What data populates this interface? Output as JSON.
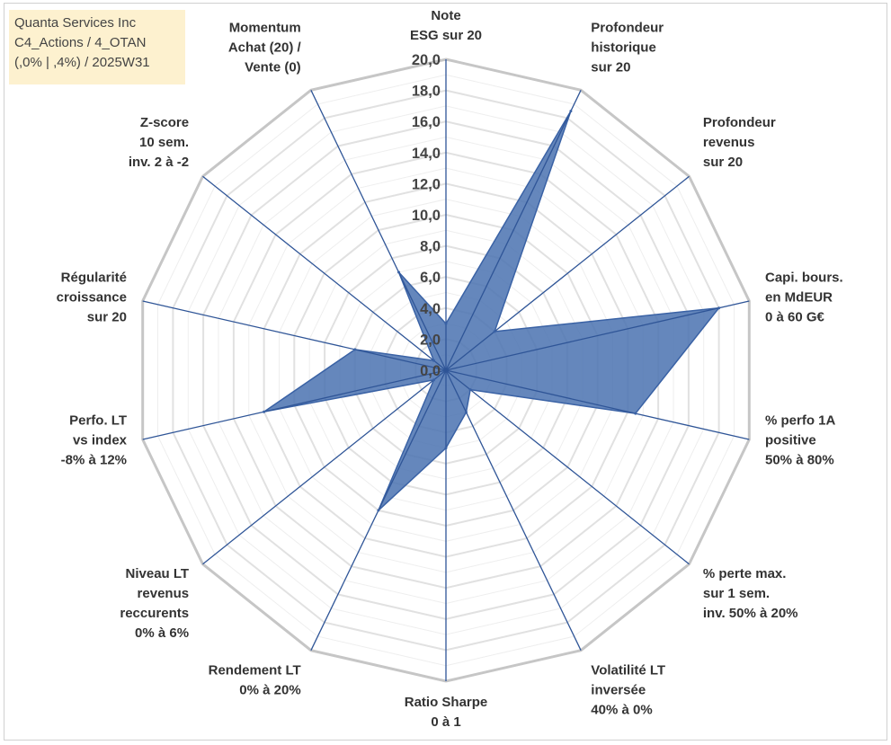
{
  "title_lines": [
    "Quanta Services Inc",
    "C4_Actions / 4_OTAN",
    "(,0% | ,4%) / 2025W31"
  ],
  "chart_data": {
    "type": "radar",
    "title": "Quanta Services Inc",
    "subtitle": "C4_Actions / 4_OTAN (,0% | ,4%) / 2025W31",
    "rmax": 20,
    "ticks": [
      "0,0",
      "2,0",
      "4,0",
      "6,0",
      "8,0",
      "10,0",
      "12,0",
      "14,0",
      "16,0",
      "18,0",
      "20,0"
    ],
    "grid": true,
    "axes": [
      {
        "lines": [
          "Note",
          "ESG sur 20"
        ],
        "value": 3.0
      },
      {
        "lines": [
          "Profondeur",
          "historique",
          "sur 20"
        ],
        "value": 18.5
      },
      {
        "lines": [
          "Profondeur",
          "revenus",
          "sur 20"
        ],
        "value": 4.0
      },
      {
        "lines": [
          "Capi. bours.",
          "en MdEUR",
          "0 à 60 G€"
        ],
        "value": 18.0
      },
      {
        "lines": [
          "% perfo 1A",
          "positive",
          "50% à 80%"
        ],
        "value": 12.5
      },
      {
        "lines": [
          "% perte max.",
          "sur 1 sem.",
          "inv. 50% à 20%"
        ],
        "value": 2.0
      },
      {
        "lines": [
          "Volatilité LT",
          "inversée",
          "40% à 0%"
        ],
        "value": 3.0
      },
      {
        "lines": [
          "Ratio Sharpe",
          "0 à 1"
        ],
        "value": 5.0
      },
      {
        "lines": [
          "Rendement LT",
          "0% à 20%"
        ],
        "value": 10.0
      },
      {
        "lines": [
          "Niveau LT",
          "revenus",
          "reccurents",
          "0% à 6%"
        ],
        "value": 1.0
      },
      {
        "lines": [
          "Perfo. LT",
          "vs index",
          "-8% à 12%"
        ],
        "value": 12.0
      },
      {
        "lines": [
          "Régularité",
          "croissance",
          "sur 20"
        ],
        "value": 6.0
      },
      {
        "lines": [
          "Z-score",
          "10 sem.",
          "inv. 2 à -2"
        ],
        "value": 1.0
      },
      {
        "lines": [
          "Momentum",
          "Achat (20) /",
          "Vente (0)"
        ],
        "value": 7.0
      }
    ],
    "colors": {
      "fill": "#4a72b0",
      "stroke": "#3a62a5",
      "spokes": "#2f5597",
      "grid_outer": "#c6c6c6",
      "grid_inner": "#e1e1e1"
    }
  }
}
